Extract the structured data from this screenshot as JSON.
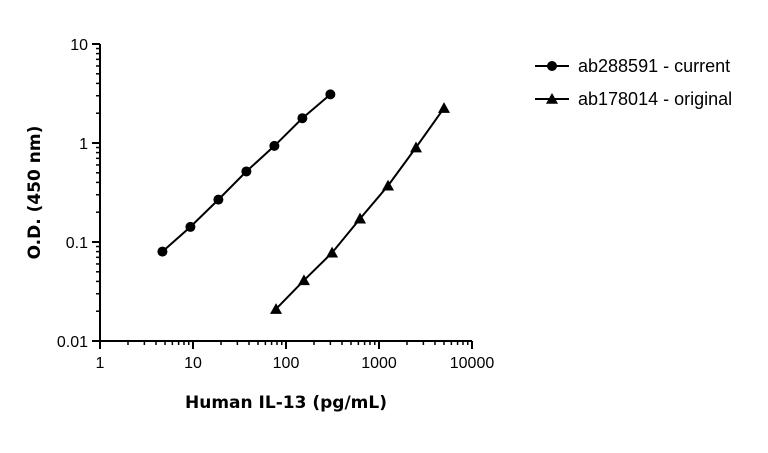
{
  "chart_data": {
    "type": "line",
    "title": "",
    "xlabel": "Human IL-13 (pg/mL)",
    "ylabel": "O.D. (450 nm)",
    "x_scale": "log",
    "y_scale": "log",
    "xlim": [
      1,
      10000
    ],
    "ylim": [
      0.01,
      10
    ],
    "x_ticks": [
      "1",
      "10",
      "100",
      "1000",
      "10000"
    ],
    "y_ticks": [
      "0.01",
      "0.1",
      "1",
      "10"
    ],
    "grid": false,
    "legend_position": "top-right",
    "series": [
      {
        "name": "ab288591 - current",
        "marker": "circle",
        "color": "#000000",
        "x": [
          4.69,
          9.38,
          18.75,
          37.5,
          75,
          150,
          300
        ],
        "y": [
          0.08,
          0.142,
          0.268,
          0.516,
          0.935,
          1.78,
          3.1
        ]
      },
      {
        "name": "ab178014 - original",
        "marker": "triangle",
        "color": "#000000",
        "x": [
          78.1,
          156,
          313,
          625,
          1250,
          2500,
          5000
        ],
        "y": [
          0.021,
          0.041,
          0.078,
          0.172,
          0.37,
          0.9,
          2.25
        ]
      }
    ]
  }
}
